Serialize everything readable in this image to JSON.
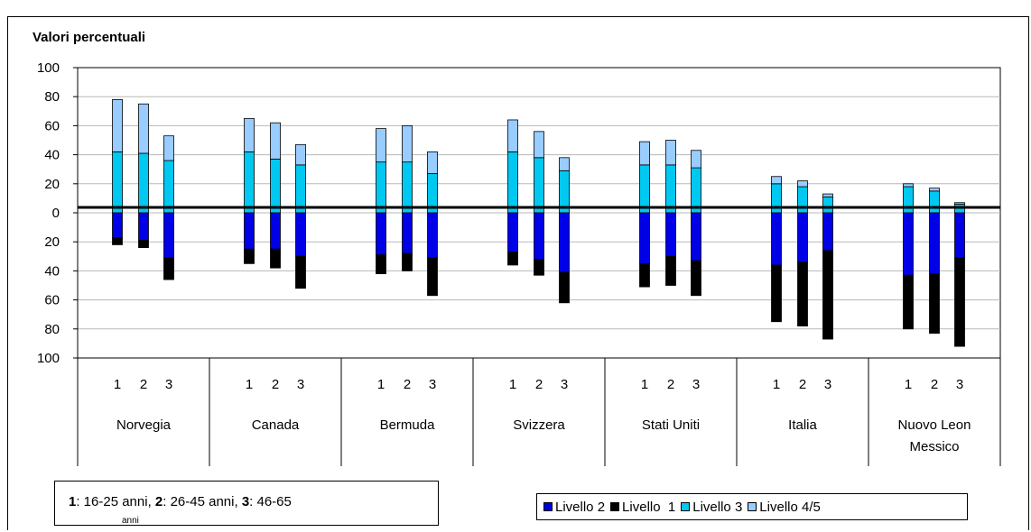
{
  "chart_data": {
    "type": "bar",
    "title": "Valori percentuali",
    "yticks": [
      "100",
      "80",
      "60",
      "40",
      "20",
      "0",
      "20",
      "40",
      "60",
      "80",
      "100"
    ],
    "ylim": [
      -100,
      100
    ],
    "groups": [
      "Norvegia",
      "Canada",
      "Bermuda",
      "Svizzera",
      "Stati Uniti",
      "Italia",
      "Nuovo Leon Messico"
    ],
    "subcategories": [
      "1",
      "2",
      "3"
    ],
    "series": [
      {
        "name": "Livello 2",
        "color": "#0000e6",
        "direction": "negative",
        "values": [
          [
            17,
            19,
            31
          ],
          [
            25,
            25,
            30
          ],
          [
            29,
            28,
            31
          ],
          [
            27,
            32,
            41
          ],
          [
            35,
            30,
            33
          ],
          [
            36,
            34,
            26
          ],
          [
            43,
            42,
            31
          ]
        ]
      },
      {
        "name": "Livello  1",
        "color": "#000000",
        "direction": "negative",
        "values": [
          [
            5,
            5,
            15
          ],
          [
            10,
            13,
            22
          ],
          [
            13,
            12,
            26
          ],
          [
            9,
            11,
            21
          ],
          [
            16,
            20,
            24
          ],
          [
            39,
            44,
            61
          ],
          [
            37,
            41,
            61
          ]
        ]
      },
      {
        "name": "Livello 3",
        "color": "#00c8f0",
        "direction": "positive",
        "values": [
          [
            42,
            41,
            36
          ],
          [
            42,
            37,
            33
          ],
          [
            35,
            35,
            27
          ],
          [
            42,
            38,
            29
          ],
          [
            33,
            33,
            31
          ],
          [
            20,
            18,
            11
          ],
          [
            18,
            15,
            6
          ]
        ]
      },
      {
        "name": "Livello 4/5",
        "color": "#99ccff",
        "direction": "positive",
        "values": [
          [
            36,
            34,
            17
          ],
          [
            23,
            25,
            14
          ],
          [
            23,
            25,
            15
          ],
          [
            22,
            18,
            9
          ],
          [
            16,
            17,
            12
          ],
          [
            5,
            4,
            2
          ],
          [
            2,
            2,
            1
          ]
        ]
      }
    ],
    "grid": true,
    "legend_position": "bottom-right"
  },
  "note": {
    "k1": "1",
    "t1": ": 16-25 anni, ",
    "k2": "2",
    "t2": ": 26-45 anni, ",
    "k3": "3",
    "t3": ": 46-65",
    "tail": "anni"
  }
}
